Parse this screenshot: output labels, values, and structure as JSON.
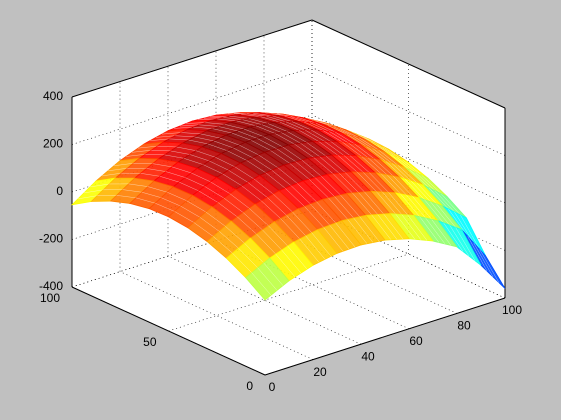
{
  "chart_data": {
    "type": "mesh",
    "x": [
      0,
      10,
      20,
      30,
      40,
      50,
      60,
      70,
      80,
      90,
      100
    ],
    "y": [
      0,
      10,
      20,
      30,
      40,
      50,
      60,
      70,
      80,
      90,
      100
    ],
    "z": [
      [
        -84,
        -36,
        -3,
        15,
        18,
        6,
        -21,
        -63,
        -120,
        -230,
        -360
      ],
      [
        -27,
        23,
        58,
        78,
        83,
        73,
        48,
        8,
        -47,
        -117,
        -260
      ],
      [
        18,
        70,
        107,
        129,
        136,
        128,
        105,
        67,
        14,
        -54,
        -137
      ],
      [
        51,
        105,
        144,
        168,
        177,
        171,
        150,
        114,
        63,
        -3,
        -84
      ],
      [
        72,
        128,
        169,
        195,
        206,
        202,
        183,
        149,
        100,
        36,
        -43
      ],
      [
        81,
        139,
        182,
        210,
        223,
        221,
        204,
        172,
        125,
        63,
        -14
      ],
      [
        78,
        138,
        183,
        213,
        228,
        228,
        213,
        183,
        138,
        78,
        3
      ],
      [
        63,
        125,
        172,
        204,
        221,
        223,
        210,
        182,
        139,
        81,
        8
      ],
      [
        36,
        100,
        149,
        183,
        202,
        206,
        195,
        169,
        128,
        72,
        1
      ],
      [
        -3,
        63,
        114,
        150,
        171,
        177,
        168,
        144,
        105,
        51,
        -18
      ],
      [
        -54,
        14,
        67,
        105,
        128,
        136,
        129,
        107,
        70,
        18,
        -49
      ]
    ],
    "xlim": [
      0,
      100
    ],
    "ylim": [
      0,
      100
    ],
    "zlim": [
      -400,
      400
    ],
    "xticks": [
      0,
      20,
      40,
      60,
      80,
      100
    ],
    "yticks": [
      0,
      50,
      100
    ],
    "zticks": [
      -400,
      -200,
      0,
      200,
      400
    ],
    "grid": true,
    "colormap": "jet"
  }
}
